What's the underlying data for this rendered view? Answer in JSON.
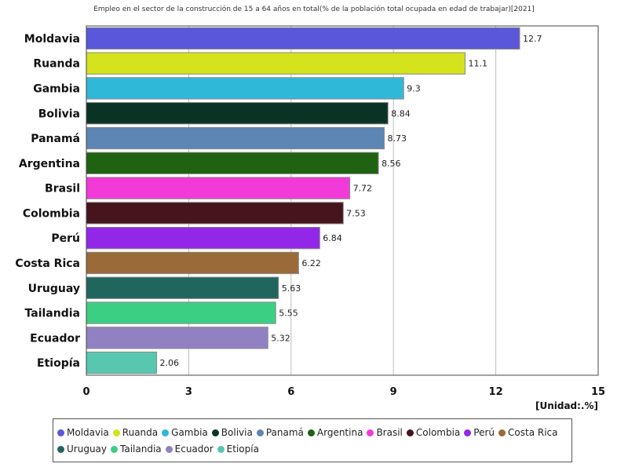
{
  "chart_data": {
    "type": "bar",
    "orientation": "horizontal",
    "title": "Empleo en el sector de la construcción de 15 a 64 años en total(% de la población total ocupada en edad de trabajar)[2021]",
    "unit_label": "[Unidad:.%]",
    "xlim": [
      0,
      15
    ],
    "xticks": [
      0,
      3,
      6,
      9,
      12,
      15
    ],
    "grid": true,
    "legend_position": "bottom",
    "categories": [
      "Moldavia",
      "Ruanda",
      "Gambia",
      "Bolivia",
      "Panamá",
      "Argentina",
      "Brasil",
      "Colombia",
      "Perú",
      "Costa Rica",
      "Uruguay",
      "Tailandia",
      "Ecuador",
      "Etiopía"
    ],
    "values": [
      12.7,
      11.1,
      9.3,
      8.84,
      8.73,
      8.56,
      7.72,
      7.53,
      6.84,
      6.22,
      5.63,
      5.55,
      5.32,
      2.06
    ],
    "value_labels": [
      "12.7",
      "11.1",
      "9.3",
      "8.84",
      "8.73",
      "8.56",
      "7.72",
      "7.53",
      "6.84",
      "6.22",
      "5.63",
      "5.55",
      "5.32",
      "2.06"
    ],
    "colors": [
      "#5b57d9",
      "#d4e31c",
      "#2fb8d8",
      "#0b3325",
      "#5d86b5",
      "#1f6312",
      "#f23ad8",
      "#45141c",
      "#9327e8",
      "#9a6b38",
      "#21665e",
      "#3bcf84",
      "#9181c2",
      "#58c7b0"
    ]
  }
}
